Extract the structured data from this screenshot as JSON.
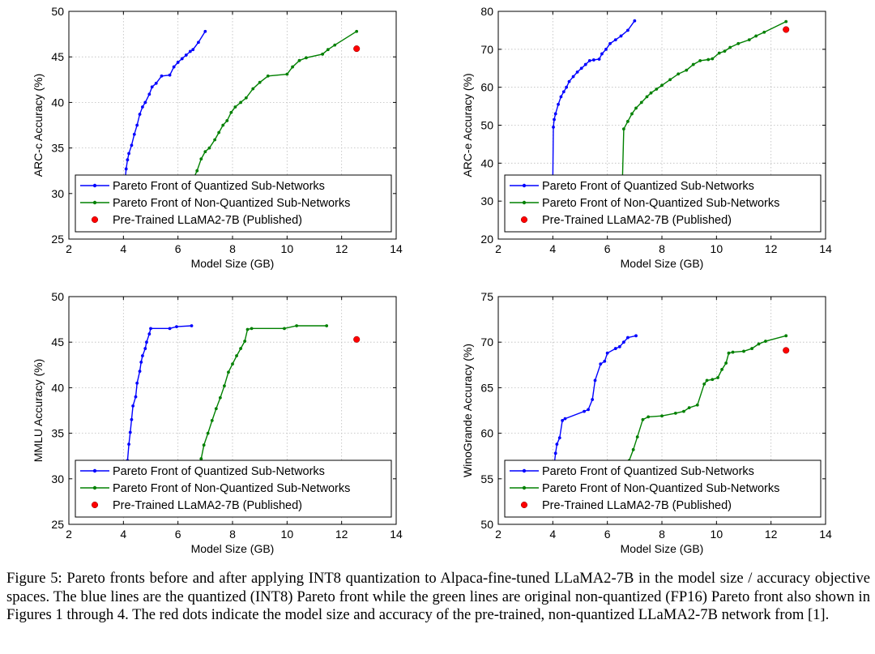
{
  "caption": "Figure 5: Pareto fronts before and after applying INT8 quantization to Alpaca-fine-tuned LLaMA2-7B in the model size / accuracy objective spaces. The blue lines are the quantized (INT8) Pareto front while the green lines are original non-quantized (FP16) Pareto front also shown in Figures 1 through 4.  The red dots indicate the model size and accuracy of the pre-trained, non-quantized LLaMA2-7B network from [1].",
  "colors": {
    "quantized": "#0000ff",
    "nonquantized": "#008000",
    "pretrained": "#ff0000",
    "grid": "#bbbbbb"
  },
  "chart_data": [
    {
      "type": "line",
      "xlabel": "Model Size (GB)",
      "ylabel": "ARC-c Accuracy (%)",
      "xlim": [
        2,
        14
      ],
      "ylim": [
        25,
        50
      ],
      "xticks": [
        2,
        4,
        6,
        8,
        10,
        12,
        14
      ],
      "yticks": [
        25,
        30,
        35,
        40,
        45,
        50
      ],
      "grid": true,
      "legend_position": "bottom-left",
      "series": [
        {
          "name": "Pareto Front of Quantized Sub-Networks",
          "color": "#0000ff",
          "marker": "dot",
          "x": [
            4.05,
            4.1,
            4.15,
            4.2,
            4.3,
            4.4,
            4.5,
            4.6,
            4.7,
            4.8,
            4.95,
            5.05,
            5.2,
            5.4,
            5.7,
            5.85,
            6.0,
            6.15,
            6.3,
            6.45,
            6.55,
            6.75,
            7.0
          ],
          "y": [
            31.0,
            32.7,
            33.7,
            34.4,
            35.3,
            36.5,
            37.5,
            38.7,
            39.5,
            40.0,
            40.9,
            41.7,
            42.1,
            42.9,
            43.0,
            43.9,
            44.4,
            44.8,
            45.2,
            45.6,
            45.8,
            46.6,
            47.8
          ]
        },
        {
          "name": "Pareto Front of Non-Quantized Sub-Networks",
          "color": "#008000",
          "marker": "dot",
          "x": [
            6.55,
            6.7,
            6.85,
            7.0,
            7.15,
            7.35,
            7.5,
            7.65,
            7.8,
            7.95,
            8.1,
            8.3,
            8.5,
            8.75,
            9.0,
            9.3,
            10.0,
            10.2,
            10.45,
            10.7,
            11.3,
            11.5,
            11.75,
            12.55
          ],
          "y": [
            31.5,
            32.5,
            33.8,
            34.6,
            35.0,
            35.9,
            36.7,
            37.5,
            38.0,
            38.9,
            39.5,
            40.0,
            40.5,
            41.5,
            42.2,
            42.9,
            43.1,
            43.9,
            44.6,
            44.9,
            45.3,
            45.8,
            46.3,
            47.8
          ]
        },
        {
          "name": "Pre-Trained LLaMA2-7B (Published)",
          "color": "#ff0000",
          "marker": "dot-only",
          "x": [
            12.55
          ],
          "y": [
            45.9
          ]
        }
      ]
    },
    {
      "type": "line",
      "xlabel": "Model Size (GB)",
      "ylabel": "ARC-e Accuracy (%)",
      "xlim": [
        2,
        14
      ],
      "ylim": [
        20,
        80
      ],
      "xticks": [
        2,
        4,
        6,
        8,
        10,
        12,
        14
      ],
      "yticks": [
        20,
        30,
        40,
        50,
        60,
        70,
        80
      ],
      "grid": true,
      "legend_position": "bottom-left",
      "series": [
        {
          "name": "Pareto Front of Quantized Sub-Networks",
          "color": "#0000ff",
          "marker": "dot",
          "x": [
            4.0,
            4.02,
            4.05,
            4.1,
            4.2,
            4.3,
            4.4,
            4.5,
            4.6,
            4.75,
            4.9,
            5.05,
            5.2,
            5.35,
            5.5,
            5.7,
            5.8,
            5.95,
            6.1,
            6.3,
            6.5,
            6.75,
            7.0
          ],
          "y": [
            35.0,
            49.5,
            51.5,
            53.0,
            55.5,
            57.5,
            58.8,
            60.0,
            61.5,
            62.8,
            64.0,
            65.0,
            66.0,
            67.0,
            67.2,
            67.4,
            68.8,
            70.0,
            71.5,
            72.5,
            73.5,
            75.0,
            77.5
          ]
        },
        {
          "name": "Pareto Front of Non-Quantized Sub-Networks",
          "color": "#008000",
          "marker": "dot",
          "x": [
            6.55,
            6.6,
            6.75,
            6.9,
            7.05,
            7.25,
            7.45,
            7.6,
            7.8,
            8.0,
            8.3,
            8.6,
            8.9,
            9.15,
            9.4,
            9.7,
            9.85,
            10.1,
            10.3,
            10.5,
            10.8,
            11.2,
            11.45,
            11.75,
            12.55
          ],
          "y": [
            35.0,
            49.0,
            51.0,
            53.0,
            54.5,
            56.0,
            57.5,
            58.5,
            59.5,
            60.5,
            62.0,
            63.5,
            64.5,
            66.0,
            67.0,
            67.3,
            67.5,
            69.0,
            69.5,
            70.5,
            71.5,
            72.5,
            73.5,
            74.5,
            77.3
          ]
        },
        {
          "name": "Pre-Trained LLaMA2-7B (Published)",
          "color": "#ff0000",
          "marker": "dot-only",
          "x": [
            12.55
          ],
          "y": [
            75.2
          ]
        }
      ]
    },
    {
      "type": "line",
      "xlabel": "Model Size (GB)",
      "ylabel": "MMLU Accuracy (%)",
      "xlim": [
        2,
        14
      ],
      "ylim": [
        25,
        50
      ],
      "xticks": [
        2,
        4,
        6,
        8,
        10,
        12,
        14
      ],
      "yticks": [
        25,
        30,
        35,
        40,
        45,
        50
      ],
      "grid": true,
      "legend_position": "bottom-left",
      "series": [
        {
          "name": "Pareto Front of Quantized Sub-Networks",
          "color": "#0000ff",
          "marker": "dot",
          "x": [
            4.15,
            4.2,
            4.25,
            4.3,
            4.35,
            4.45,
            4.5,
            4.6,
            4.65,
            4.7,
            4.8,
            4.85,
            4.95,
            5.0,
            5.7,
            5.95,
            6.5
          ],
          "y": [
            32.0,
            33.8,
            35.1,
            36.5,
            38.0,
            39.0,
            40.5,
            41.8,
            42.8,
            43.5,
            44.3,
            45.0,
            45.9,
            46.5,
            46.5,
            46.7,
            46.8
          ]
        },
        {
          "name": "Pareto Front of Non-Quantized Sub-Networks",
          "color": "#008000",
          "marker": "dot",
          "x": [
            6.85,
            6.95,
            7.1,
            7.25,
            7.4,
            7.55,
            7.7,
            7.85,
            8.0,
            8.15,
            8.3,
            8.45,
            8.55,
            8.7,
            9.9,
            10.35,
            11.45
          ],
          "y": [
            32.2,
            33.7,
            35.0,
            36.4,
            37.7,
            38.9,
            40.2,
            41.7,
            42.6,
            43.5,
            44.3,
            45.1,
            46.4,
            46.5,
            46.5,
            46.8,
            46.8
          ]
        },
        {
          "name": "Pre-Trained LLaMA2-7B (Published)",
          "color": "#ff0000",
          "marker": "dot-only",
          "x": [
            12.55
          ],
          "y": [
            45.3
          ]
        }
      ]
    },
    {
      "type": "line",
      "xlabel": "Model Size (GB)",
      "ylabel": "WinoGrande Accuracy (%)",
      "xlim": [
        2,
        14
      ],
      "ylim": [
        50,
        75
      ],
      "xticks": [
        2,
        4,
        6,
        8,
        10,
        12,
        14
      ],
      "yticks": [
        50,
        55,
        60,
        65,
        70,
        75
      ],
      "grid": true,
      "legend_position": "bottom-left",
      "series": [
        {
          "name": "Pareto Front of Quantized Sub-Networks",
          "color": "#0000ff",
          "marker": "dot",
          "x": [
            4.05,
            4.1,
            4.15,
            4.25,
            4.35,
            4.45,
            5.15,
            5.3,
            5.45,
            5.55,
            5.75,
            5.9,
            6.0,
            6.3,
            6.45,
            6.6,
            6.75,
            7.05
          ],
          "y": [
            56.5,
            57.8,
            58.8,
            59.5,
            61.4,
            61.6,
            62.4,
            62.6,
            63.7,
            65.8,
            67.6,
            67.9,
            68.8,
            69.3,
            69.5,
            70.0,
            70.5,
            70.7
          ]
        },
        {
          "name": "Pareto Front of Non-Quantized Sub-Networks",
          "color": "#008000",
          "marker": "dot",
          "x": [
            6.65,
            6.8,
            6.95,
            7.1,
            7.3,
            7.5,
            8.0,
            8.5,
            8.8,
            9.0,
            9.3,
            9.55,
            9.65,
            9.85,
            10.05,
            10.2,
            10.35,
            10.45,
            10.6,
            11.0,
            11.3,
            11.55,
            11.8,
            12.55
          ],
          "y": [
            56.3,
            57.0,
            58.2,
            59.6,
            61.5,
            61.8,
            61.9,
            62.2,
            62.4,
            62.8,
            63.1,
            65.4,
            65.8,
            65.9,
            66.1,
            67.0,
            67.7,
            68.8,
            68.9,
            69.0,
            69.3,
            69.8,
            70.1,
            70.7
          ]
        },
        {
          "name": "Pre-Trained LLaMA2-7B (Published)",
          "color": "#ff0000",
          "marker": "dot-only",
          "x": [
            12.55
          ],
          "y": [
            69.1
          ]
        }
      ]
    }
  ]
}
